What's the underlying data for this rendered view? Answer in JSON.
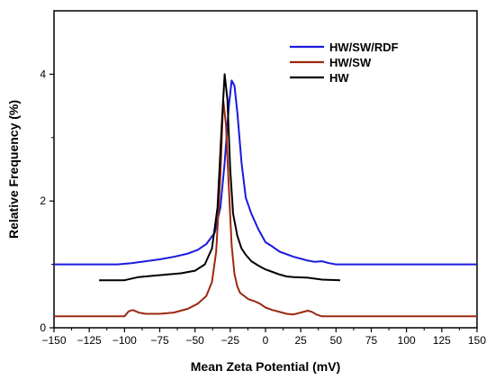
{
  "chart_data": {
    "type": "line",
    "title": "",
    "xlabel": "Mean Zeta Potential (mV)",
    "ylabel": "Relative Frequency (%)",
    "xlim": [
      -150,
      150
    ],
    "ylim": [
      0,
      5
    ],
    "xticks": [
      -150,
      -125,
      -100,
      -75,
      -50,
      -25,
      0,
      25,
      50,
      75,
      100,
      125,
      150
    ],
    "yticks": [
      0,
      2,
      4
    ],
    "grid": false,
    "legend_position": "top-right",
    "series": [
      {
        "name": "HW/SW/RDF",
        "color": "#1a1adc",
        "x": [
          -150,
          -105,
          -95,
          -85,
          -75,
          -65,
          -55,
          -48,
          -42,
          -36,
          -32,
          -29,
          -26,
          -24,
          -22,
          -20,
          -17,
          -14,
          -10,
          -5,
          0,
          5,
          10,
          20,
          30,
          35,
          40,
          45,
          50,
          100,
          150
        ],
        "y": [
          1.0,
          1.0,
          1.02,
          1.05,
          1.08,
          1.12,
          1.17,
          1.23,
          1.32,
          1.5,
          1.9,
          2.6,
          3.5,
          3.9,
          3.82,
          3.4,
          2.6,
          2.05,
          1.8,
          1.55,
          1.35,
          1.28,
          1.2,
          1.12,
          1.06,
          1.04,
          1.05,
          1.02,
          1.0,
          1.0,
          1.0
        ]
      },
      {
        "name": "HW/SW",
        "color": "#9b2a10",
        "x": [
          -150,
          -100,
          -97,
          -94,
          -90,
          -85,
          -75,
          -65,
          -55,
          -48,
          -42,
          -38,
          -35,
          -32,
          -30,
          -28,
          -26,
          -24,
          -22,
          -20,
          -18,
          -15,
          -12,
          -8,
          -4,
          0,
          5,
          10,
          15,
          20,
          25,
          30,
          33,
          36,
          40,
          150
        ],
        "y": [
          0.18,
          0.18,
          0.26,
          0.28,
          0.24,
          0.22,
          0.22,
          0.24,
          0.3,
          0.38,
          0.5,
          0.72,
          1.2,
          2.4,
          3.6,
          3.2,
          2.2,
          1.3,
          0.85,
          0.65,
          0.55,
          0.5,
          0.45,
          0.42,
          0.38,
          0.32,
          0.28,
          0.25,
          0.22,
          0.21,
          0.24,
          0.27,
          0.25,
          0.21,
          0.18,
          0.18
        ]
      },
      {
        "name": "HW",
        "color": "#000000",
        "x": [
          -118,
          -100,
          -90,
          -80,
          -70,
          -60,
          -50,
          -43,
          -38,
          -34,
          -31,
          -29,
          -27,
          -25,
          -23,
          -20,
          -17,
          -14,
          -10,
          -5,
          0,
          5,
          10,
          15,
          20,
          30,
          40,
          53
        ],
        "y": [
          0.75,
          0.75,
          0.8,
          0.82,
          0.84,
          0.86,
          0.9,
          1.0,
          1.25,
          1.9,
          3.2,
          4.0,
          3.6,
          2.5,
          1.8,
          1.45,
          1.25,
          1.15,
          1.05,
          0.98,
          0.92,
          0.88,
          0.84,
          0.81,
          0.8,
          0.79,
          0.76,
          0.75
        ]
      }
    ]
  }
}
